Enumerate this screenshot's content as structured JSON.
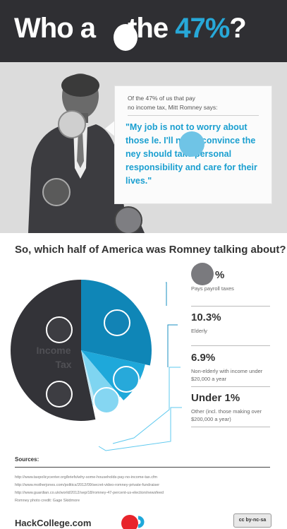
{
  "header": {
    "title_pre": "Who a",
    "title_mid": " the ",
    "title_accent": "47%",
    "title_post": "?"
  },
  "hero": {
    "intro_line1": "Of the 47% of us that pay",
    "intro_line2": "no income tax, Mitt Romney says:",
    "quote": "\"My job is not to worry about those    le. I'll never convince the    ney should take personal responsibility and care for their lives.\""
  },
  "section": {
    "question": "So, which half of America was Romney talking about?"
  },
  "chart_data": {
    "type": "pie",
    "title": "So, which half of America was Romney talking about?",
    "slices": [
      {
        "label": "Income Tax",
        "value": 53
      },
      {
        "label": "Pays payroll taxes",
        "value": 28.3
      },
      {
        "label": "Elderly",
        "value": 10.3
      },
      {
        "label": "Non-elderly with income under $20,000 a year",
        "value": 6.9
      },
      {
        "label": "Other (incl. those making over $200,000 a year)",
        "value": 1.0
      }
    ],
    "pie_label": "Income\nTax",
    "legend": [
      {
        "value": "%",
        "desc": "Pays payroll taxes"
      },
      {
        "value": "10.3%",
        "desc": "Elderly"
      },
      {
        "value": "6.9%",
        "desc": "Non-elderly with income under $20,000 a year"
      },
      {
        "value": "Under 1%",
        "desc": "Other (incl. those making over $200,000 a year)"
      }
    ],
    "colors": {
      "income_tax": "#333338",
      "payroll": "#0f86b7",
      "elderly": "#1ea8da",
      "non_elderly": "#7fd5f1",
      "other": "#c7eaf6"
    }
  },
  "sources": {
    "title": "Sources:",
    "lines": [
      "http://www.taxpolicycenter.org/briefs/why-some-households-pay-no-income-tax.cfm",
      "http://www.motherjones.com/politics/2012/09/secret-video-romney-private-fundraiser",
      "http://www.guardian.co.uk/world/2012/sep/18/romney-47-percent-us-election/newsfeed",
      "Romney photo credit: Gage Skidmore"
    ]
  },
  "footer": {
    "brand": "HackCollege.com",
    "license": "cc by-nc-sa"
  }
}
